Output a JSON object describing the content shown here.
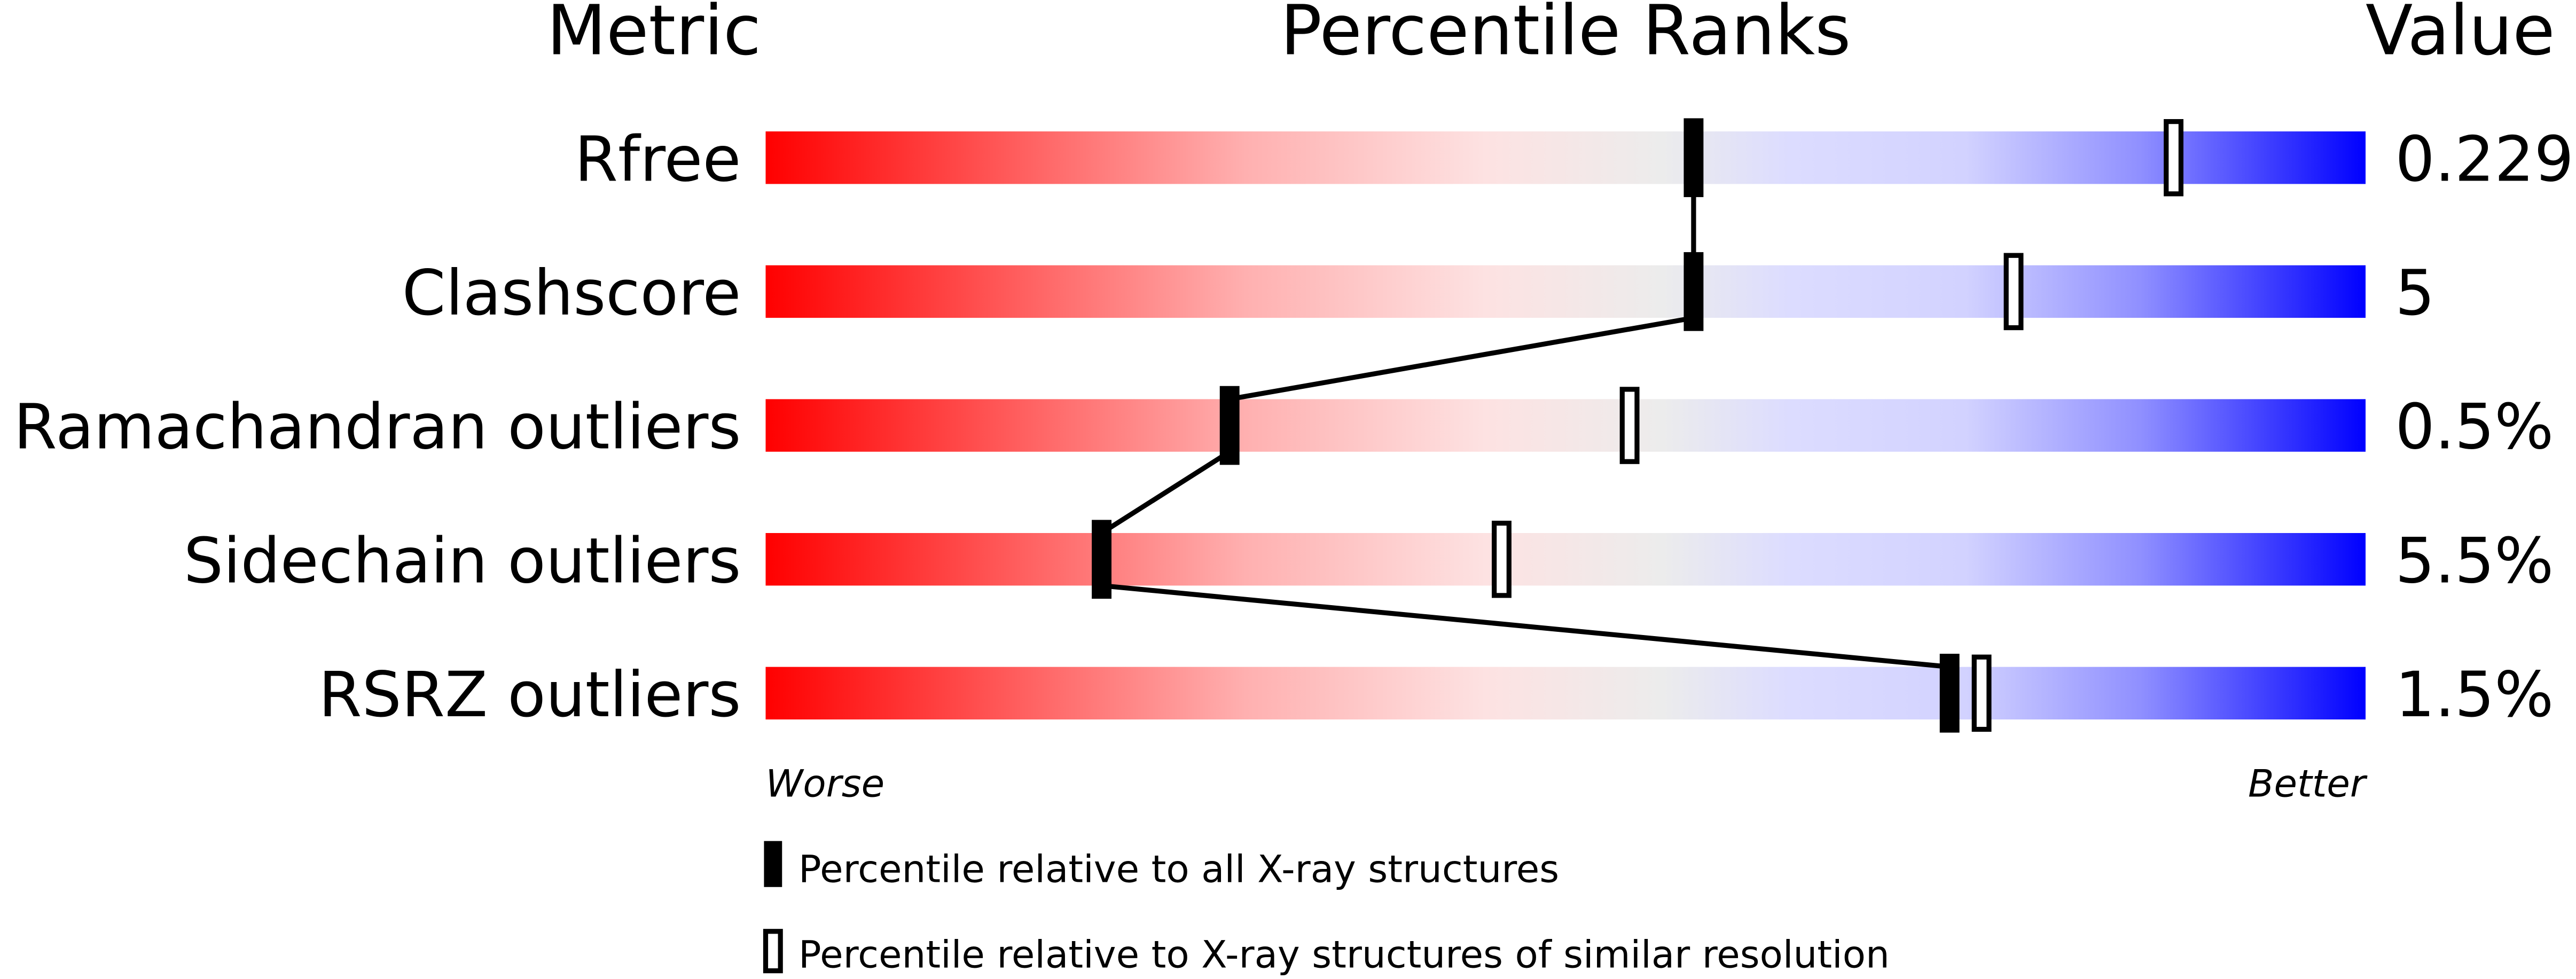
{
  "chart_data": {
    "type": "percentile-bar",
    "headers": {
      "metric": "Metric",
      "ranks": "Percentile Ranks",
      "value": "Value"
    },
    "xlim": [
      0,
      100
    ],
    "axis_labels": {
      "left": "Worse",
      "right": "Better"
    },
    "metrics": [
      {
        "name": "Rfree",
        "value": "0.229",
        "percentile_all": 58,
        "percentile_similar": 88
      },
      {
        "name": "Clashscore",
        "value": "5",
        "percentile_all": 58,
        "percentile_similar": 78
      },
      {
        "name": "Ramachandran outliers",
        "value": "0.5%",
        "percentile_all": 29,
        "percentile_similar": 54
      },
      {
        "name": "Sidechain outliers",
        "value": "5.5%",
        "percentile_all": 21,
        "percentile_similar": 46
      },
      {
        "name": "RSRZ outliers",
        "value": "1.5%",
        "percentile_all": 74,
        "percentile_similar": 76
      }
    ],
    "legend": [
      {
        "marker": "filled",
        "label": "Percentile relative to all X-ray structures"
      },
      {
        "marker": "open",
        "label": "Percentile relative to X-ray structures of similar resolution"
      }
    ],
    "colors": {
      "worse": "#ff0000",
      "middle": "#eeeeee",
      "better": "#0000ff",
      "marker": "#000000"
    }
  }
}
